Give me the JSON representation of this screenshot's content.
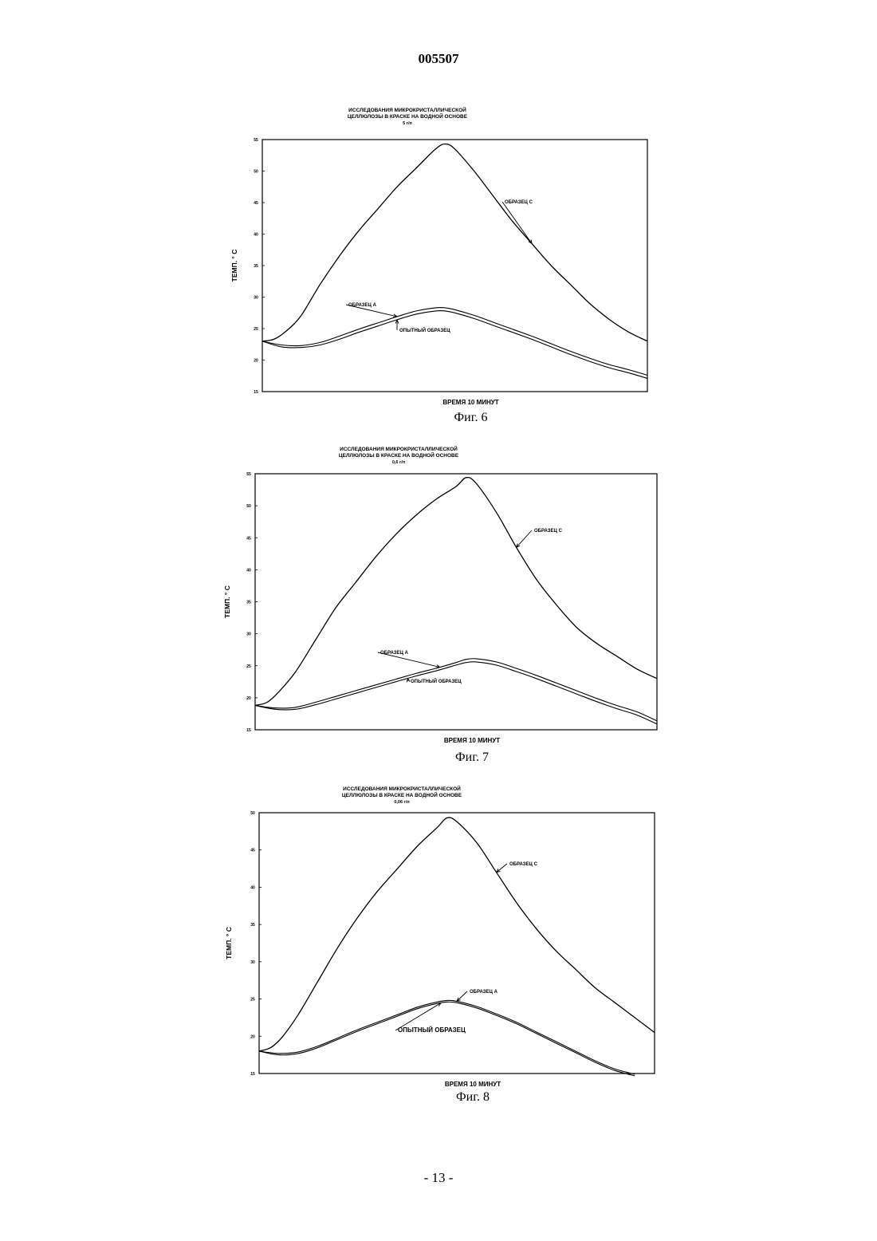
{
  "header": {
    "doc_number": "005507"
  },
  "footer": {
    "page_number": "- 13 -"
  },
  "chart_data": [
    {
      "type": "line",
      "caption": "Фиг. 6",
      "title": [
        "ИССЛЕДОВАНИЯ МИКРОКРИСТАЛЛИЧЕСКОЙ",
        "ЦЕЛЛЮЛОЗЫ В КРАСКЕ НА ВОДНОЙ ОСНОВЕ",
        "5 г/п"
      ],
      "xlabel": "ВРЕМЯ 10 МИНУТ",
      "ylabel": "ТЕМП. ° С",
      "ylim": [
        15,
        55
      ],
      "yticks": [
        "15",
        "20",
        "25",
        "30",
        "35",
        "40",
        "45",
        "50",
        "55"
      ],
      "xlim": [
        0,
        10
      ],
      "series": [
        {
          "name": "ОБРАЗЕЦ С",
          "x": [
            0,
            0.3,
            0.6,
            1,
            1.5,
            2,
            2.5,
            3,
            3.5,
            4,
            4.5,
            4.75,
            5,
            5.5,
            6,
            6.5,
            7,
            7.5,
            8,
            8.5,
            9,
            9.5,
            10
          ],
          "y": [
            23,
            23.3,
            24.5,
            27,
            32,
            36.5,
            40.5,
            44,
            47.5,
            50.5,
            53.5,
            54.3,
            53.5,
            50,
            46,
            42,
            38.5,
            35,
            32,
            29,
            26.5,
            24.5,
            23
          ]
        },
        {
          "name": "ОБРАЗЕЦ А",
          "x": [
            0,
            0.5,
            1,
            1.5,
            2,
            2.5,
            3,
            3.5,
            4,
            4.5,
            4.75,
            5,
            5.5,
            6,
            6.5,
            7,
            7.5,
            8,
            8.5,
            9,
            9.5,
            10
          ],
          "y": [
            23,
            22.4,
            22.3,
            22.8,
            23.8,
            24.9,
            25.9,
            26.9,
            27.8,
            28.3,
            28.3,
            28,
            27.1,
            26,
            24.9,
            23.8,
            22.6,
            21.4,
            20.3,
            19.3,
            18.5,
            17.6
          ]
        },
        {
          "name": "ОПЫТНЫЙ ОБРАЗЕЦ",
          "x": [
            0,
            0.5,
            1,
            1.5,
            2,
            2.5,
            3,
            3.5,
            4,
            4.5,
            4.75,
            5,
            5.5,
            6,
            6.5,
            7,
            7.5,
            8,
            8.5,
            9,
            9.5,
            10
          ],
          "y": [
            23,
            22.1,
            22,
            22.4,
            23.3,
            24.4,
            25.4,
            26.4,
            27.3,
            27.8,
            27.8,
            27.5,
            26.6,
            25.5,
            24.4,
            23.3,
            22.1,
            20.9,
            19.8,
            18.8,
            18,
            17.1
          ]
        }
      ]
    },
    {
      "type": "line",
      "caption": "Фиг. 7",
      "title": [
        "ИССЛЕДОВАНИЯ МИКРОКРИСТАЛЛИЧЕСКОЙ",
        "ЦЕЛЛЮЛОЗЫ В КРАСКЕ НА ВОДНОЙ ОСНОВЕ",
        "0,6 г/п"
      ],
      "xlabel": "ВРЕМЯ 10 МИНУТ",
      "ylabel": "ТЕМП. ° С",
      "ylim": [
        15,
        55
      ],
      "yticks": [
        "15",
        "20",
        "25",
        "30",
        "35",
        "40",
        "45",
        "50",
        "55"
      ],
      "xlim": [
        0,
        10
      ],
      "series": [
        {
          "name": "ОБРАЗЕЦ С",
          "x": [
            0,
            0.3,
            0.6,
            1,
            1.5,
            2,
            2.5,
            3,
            3.5,
            4,
            4.5,
            5,
            5.25,
            5.5,
            6,
            6.5,
            7,
            7.5,
            8,
            8.5,
            9,
            9.5,
            10
          ],
          "y": [
            18.8,
            19.3,
            21,
            24,
            29,
            34,
            38,
            42,
            45.5,
            48.5,
            51,
            53,
            54.4,
            53.5,
            49,
            43.5,
            38.5,
            34.5,
            31,
            28.5,
            26.5,
            24.5,
            23
          ]
        },
        {
          "name": "ОБРАЗЕЦ А",
          "x": [
            0,
            0.5,
            1,
            1.5,
            2,
            2.5,
            3,
            3.5,
            4,
            4.5,
            5,
            5.25,
            5.5,
            6,
            6.5,
            7,
            7.5,
            8,
            8.5,
            9,
            9.5,
            10
          ],
          "y": [
            18.8,
            18.4,
            18.5,
            19.3,
            20.2,
            21.1,
            22,
            22.9,
            23.8,
            24.6,
            25.5,
            26,
            26.1,
            25.6,
            24.6,
            23.5,
            22.3,
            21.1,
            19.9,
            18.8,
            17.8,
            16.4
          ]
        },
        {
          "name": "ОПЫТНЫЙ ОБРАЗЕЦ",
          "x": [
            0,
            0.5,
            1,
            1.5,
            2,
            2.5,
            3,
            3.5,
            4,
            4.5,
            5,
            5.25,
            5.5,
            6,
            6.5,
            7,
            7.5,
            8,
            8.5,
            9,
            9.5,
            10
          ],
          "y": [
            18.8,
            18.2,
            18.2,
            18.9,
            19.8,
            20.7,
            21.6,
            22.5,
            23.4,
            24.2,
            25.1,
            25.5,
            25.6,
            25.1,
            24.1,
            23,
            21.8,
            20.6,
            19.4,
            18.3,
            17.3,
            15.9
          ]
        }
      ]
    },
    {
      "type": "line",
      "caption": "Фиг. 8",
      "title": [
        "ИССЛЕДОВАНИЯ МИКРОКРИСТАЛЛИЧЕСКОЙ",
        "ЦЕЛЛЮЛОЗЫ В КРАСКЕ НА ВОДНОЙ ОСНОВЕ",
        "0,06 г/п"
      ],
      "xlabel": "ВРЕМЯ 10 МИНУТ",
      "ylabel": "ТЕМП. ° С",
      "ylim": [
        15,
        50
      ],
      "yticks": [
        "15",
        "20",
        "25",
        "30",
        "35",
        "40",
        "45",
        "50"
      ],
      "xlim": [
        0,
        10
      ],
      "series": [
        {
          "name": "ОБРАЗЕЦ С",
          "x": [
            0,
            0.3,
            0.6,
            1,
            1.5,
            2,
            2.5,
            3,
            3.5,
            4,
            4.5,
            4.75,
            5,
            5.5,
            6,
            6.5,
            7,
            7.5,
            8,
            8.5,
            9,
            9.5,
            10
          ],
          "y": [
            18,
            18.5,
            20,
            23,
            27.5,
            32,
            36,
            39.5,
            42.5,
            45.5,
            48,
            49.3,
            48.8,
            46,
            42,
            38,
            34.5,
            31.5,
            29,
            26.5,
            24.5,
            22.5,
            20.5
          ]
        },
        {
          "name": "ОБРАЗЕЦ А",
          "x": [
            0,
            0.5,
            1,
            1.5,
            2,
            2.5,
            3,
            3.5,
            4,
            4.5,
            4.75,
            5,
            5.5,
            6,
            6.5,
            7,
            7.5,
            8,
            8.5,
            9,
            9.5
          ],
          "y": [
            18,
            17.7,
            17.9,
            18.7,
            19.8,
            20.9,
            21.9,
            22.9,
            23.9,
            24.6,
            24.8,
            24.7,
            24,
            23,
            21.9,
            20.6,
            19.3,
            18,
            16.7,
            15.6,
            14.9
          ]
        },
        {
          "name": "ОПЫТНЫЙ ОБРАЗЕЦ",
          "x": [
            0,
            0.5,
            1,
            1.5,
            2,
            2.5,
            3,
            3.5,
            4,
            4.5,
            4.75,
            5,
            5.5,
            6,
            6.5,
            7,
            7.5,
            8,
            8.5,
            9,
            9.5
          ],
          "y": [
            18,
            17.5,
            17.7,
            18.5,
            19.6,
            20.7,
            21.7,
            22.7,
            23.7,
            24.4,
            24.6,
            24.5,
            23.8,
            22.8,
            21.7,
            20.4,
            19.1,
            17.8,
            16.5,
            15.4,
            14.7
          ]
        }
      ]
    }
  ]
}
